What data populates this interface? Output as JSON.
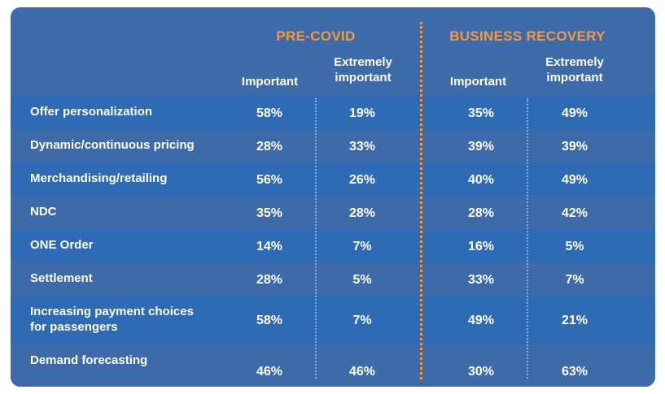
{
  "chart_data": {
    "type": "table",
    "groups": [
      {
        "name": "PRE-COVID",
        "columns": [
          "Important",
          "Extremely\nimportant"
        ]
      },
      {
        "name": "BUSINESS RECOVERY",
        "columns": [
          "Important",
          "Extremely\nimportant"
        ]
      }
    ],
    "rows": [
      {
        "label": "Offer personalization",
        "values": [
          "58%",
          "19%",
          "35%",
          "49%"
        ]
      },
      {
        "label": "Dynamic/continuous pricing",
        "values": [
          "28%",
          "33%",
          "39%",
          "39%"
        ]
      },
      {
        "label": "Merchandising/retailing",
        "values": [
          "56%",
          "26%",
          "40%",
          "49%"
        ]
      },
      {
        "label": "NDC",
        "values": [
          "35%",
          "28%",
          "28%",
          "42%"
        ]
      },
      {
        "label": "ONE Order",
        "values": [
          "14%",
          "7%",
          "16%",
          "5%"
        ]
      },
      {
        "label": "Settlement",
        "values": [
          "28%",
          "5%",
          "33%",
          "7%"
        ]
      },
      {
        "label": "Increasing payment choices\nfor passengers",
        "values": [
          "58%",
          "7%",
          "49%",
          "21%"
        ]
      },
      {
        "label": "Demand forecasting",
        "values": [
          "46%",
          "46%",
          "30%",
          "63%"
        ]
      }
    ]
  },
  "colors": {
    "card_background": "#3d6aa8",
    "row_stripe": "#2f6ab5",
    "accent": "#f49a3c",
    "text": "#ffffff"
  }
}
